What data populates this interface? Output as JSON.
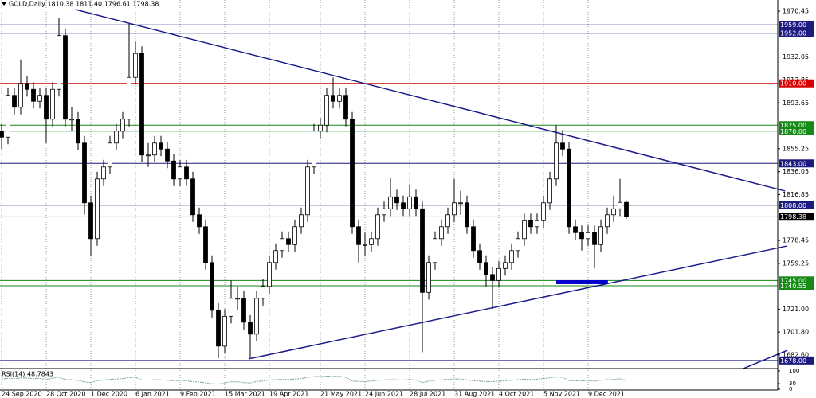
{
  "chart_data": {
    "type": "candlestick",
    "title": "GOLD,Daily  1810.38 1811.40 1796.61 1798.38",
    "categories": [
      null,
      null,
      "24 Sep 2020",
      null,
      null,
      null,
      null,
      null,
      null,
      "28 Oct 2020",
      null,
      null,
      null,
      null,
      null,
      null,
      "1 Dec 2020",
      null,
      null,
      null,
      null,
      null,
      null,
      "6 Jan 2021",
      null,
      null,
      null,
      null,
      null,
      null,
      "9 Feb 2021",
      null,
      null,
      null,
      null,
      null,
      null,
      "15 Mar 2021",
      null,
      null,
      null,
      null,
      null,
      null,
      "19 Apr 2021",
      null,
      null,
      null,
      null,
      null,
      null,
      null,
      "21 May 2021",
      null,
      null,
      null,
      null,
      null,
      null,
      "24 Jun 2021",
      null,
      null,
      null,
      null,
      null,
      null,
      "28 Jul 2021",
      null,
      null,
      null,
      null,
      null,
      null,
      "31 Aug 2021",
      null,
      null,
      null,
      null,
      null,
      null,
      "4 Oct 2021",
      null,
      null,
      null,
      null,
      null,
      null,
      "5 Nov 2021",
      null,
      null,
      null,
      null,
      null,
      null,
      "9 Dec 2021",
      null,
      null,
      null,
      null
    ],
    "open": [
      1870,
      1865,
      1900,
      1890,
      1910,
      1905,
      1895,
      1900,
      1880,
      1905,
      1950,
      1880,
      1880,
      1860,
      1810,
      1780,
      1830,
      1840,
      1860,
      1870,
      1880,
      1915,
      1935,
      1850,
      1850,
      1860,
      1855,
      1845,
      1830,
      1840,
      1830,
      1800,
      1790,
      1760,
      1720,
      1690,
      1715,
      1730,
      1730,
      1710,
      1700,
      1730,
      1740,
      1760,
      1770,
      1780,
      1775,
      1790,
      1800,
      1840,
      1870,
      1875,
      1900,
      1895,
      1900,
      1880,
      1790,
      1775,
      1775,
      1780,
      1800,
      1805,
      1815,
      1810,
      1805,
      1815,
      1805,
      1735,
      1760,
      1780,
      1790,
      1800,
      1810,
      1810,
      1790,
      1770,
      1760,
      1750,
      1745,
      1755,
      1760,
      1770,
      1780,
      1795,
      1790,
      1795,
      1810,
      1830,
      1860,
      1855,
      1790,
      1785,
      1780,
      1785,
      1775,
      1790,
      1800,
      1805,
      1810.38
    ],
    "high": [
      1876,
      1906,
      1906,
      1930,
      1916,
      1911,
      1906,
      1906,
      1911,
      1965,
      1956,
      1890,
      1886,
      1866,
      1816,
      1836,
      1846,
      1866,
      1876,
      1886,
      1960,
      1945,
      1941,
      1860,
      1866,
      1866,
      1861,
      1851,
      1846,
      1846,
      1836,
      1806,
      1796,
      1766,
      1726,
      1721,
      1745,
      1740,
      1736,
      1716,
      1736,
      1746,
      1766,
      1776,
      1786,
      1786,
      1796,
      1806,
      1846,
      1876,
      1881,
      1906,
      1915,
      1906,
      1906,
      1886,
      1796,
      1785,
      1786,
      1806,
      1811,
      1831,
      1821,
      1816,
      1825,
      1821,
      1811,
      1766,
      1786,
      1796,
      1806,
      1830,
      1820,
      1816,
      1796,
      1776,
      1766,
      1756,
      1761,
      1766,
      1776,
      1786,
      1801,
      1801,
      1801,
      1816,
      1836,
      1875,
      1871,
      1861,
      1796,
      1791,
      1791,
      1791,
      1796,
      1806,
      1816,
      1830,
      1811.4
    ],
    "low": [
      1855,
      1859,
      1884,
      1884,
      1899,
      1889,
      1889,
      1860,
      1874,
      1899,
      1874,
      1870,
      1854,
      1800,
      1765,
      1774,
      1824,
      1834,
      1854,
      1864,
      1874,
      1909,
      1844,
      1840,
      1844,
      1849,
      1839,
      1824,
      1824,
      1824,
      1794,
      1784,
      1754,
      1714,
      1680,
      1684,
      1709,
      1720,
      1704,
      1680,
      1694,
      1724,
      1734,
      1754,
      1764,
      1769,
      1769,
      1784,
      1794,
      1834,
      1864,
      1869,
      1889,
      1889,
      1874,
      1784,
      1760,
      1765,
      1769,
      1774,
      1794,
      1799,
      1804,
      1799,
      1799,
      1799,
      1685,
      1729,
      1754,
      1774,
      1784,
      1794,
      1800,
      1784,
      1764,
      1754,
      1740,
      1721,
      1739,
      1749,
      1754,
      1764,
      1774,
      1784,
      1784,
      1789,
      1804,
      1824,
      1849,
      1784,
      1779,
      1770,
      1774,
      1755,
      1769,
      1784,
      1794,
      1799,
      1796.61
    ],
    "close": [
      1865,
      1900,
      1890,
      1910,
      1905,
      1895,
      1900,
      1880,
      1905,
      1950,
      1880,
      1880,
      1860,
      1810,
      1780,
      1830,
      1840,
      1860,
      1870,
      1880,
      1915,
      1935,
      1850,
      1850,
      1860,
      1855,
      1845,
      1830,
      1840,
      1830,
      1800,
      1790,
      1760,
      1720,
      1690,
      1715,
      1730,
      1730,
      1710,
      1700,
      1730,
      1740,
      1760,
      1770,
      1780,
      1775,
      1790,
      1800,
      1840,
      1870,
      1875,
      1900,
      1895,
      1900,
      1880,
      1790,
      1775,
      1775,
      1780,
      1800,
      1805,
      1815,
      1810,
      1805,
      1815,
      1805,
      1735,
      1760,
      1780,
      1790,
      1800,
      1810,
      1810,
      1790,
      1770,
      1760,
      1750,
      1745,
      1755,
      1760,
      1770,
      1780,
      1795,
      1790,
      1795,
      1810,
      1830,
      1860,
      1855,
      1790,
      1785,
      1780,
      1785,
      1775,
      1790,
      1800,
      1805,
      1810.38,
      1798.38
    ],
    "up_color": "#ffffff",
    "down_color": "#000000",
    "ylim": [
      1671.9,
      1979.8
    ],
    "yticks": [
      1970.45,
      1932.05,
      1912.85,
      1893.65,
      1855.25,
      1836.05,
      1816.85,
      1778.45,
      1759.25,
      {
        "value": 1721,
        "label": "1721.00"
      },
      {
        "value": 1701.8,
        "label": "1701.80"
      },
      {
        "value": 1682.6,
        "label": "1682.60"
      }
    ],
    "levels": [
      {
        "value": 1959,
        "label": "1959.00",
        "color": "#1c1c80"
      },
      {
        "value": 1952,
        "label": "1952.00",
        "color": "#1c1c80"
      },
      {
        "value": 1910,
        "label": "1910.00",
        "color": "#d40000"
      },
      {
        "value": 1875,
        "label": "1875.00",
        "color": "#168a16"
      },
      {
        "value": 1870,
        "label": "1870.00",
        "color": "#168a16"
      },
      {
        "value": 1843,
        "label": "1843.00",
        "color": "#1c1c80"
      },
      {
        "value": 1808,
        "label": "1808.00",
        "color": "#1c1c80"
      },
      {
        "value": 1798.38,
        "label": "1798.38",
        "color": "#000000"
      },
      {
        "value": 1745,
        "label": "1745.00",
        "color": "#168a16"
      },
      {
        "value": 1740.55,
        "label": "1740.55",
        "color": "#168a16"
      },
      {
        "value": 1678,
        "label": "1678.00",
        "color": "#1c1c80"
      }
    ],
    "trendlines": [
      {
        "x": [
          11.6,
          122.9
        ],
        "y": [
          1971.8,
          1819.9
        ],
        "color": "#1c1c8c"
      },
      {
        "x": [
          38.75,
          123.25
        ],
        "y": [
          1679.3,
          1773.9
        ],
        "color": "#1c1c8c"
      },
      {
        "x": [
          115.75,
          123.25
        ],
        "y": [
          1669.9,
          1686.5
        ],
        "color": "#1c1c8c"
      }
    ],
    "zones": [
      {
        "x": [
          87,
          95.1
        ],
        "y": [
          1745.2,
          1741.9
        ],
        "color": "#0000cc"
      }
    ],
    "rsi": {
      "title": "RSI(14) 48.7843",
      "values": [
        55,
        60,
        58,
        62,
        61,
        58,
        59,
        54,
        60,
        66,
        52,
        52,
        48,
        40,
        36,
        47,
        50,
        54,
        56,
        58,
        64,
        66,
        50,
        50,
        52,
        51,
        49,
        46,
        48,
        46,
        41,
        39,
        35,
        30,
        27,
        35,
        40,
        40,
        36,
        34,
        42,
        45,
        50,
        52,
        54,
        53,
        56,
        58,
        65,
        69,
        70,
        72,
        70,
        71,
        65,
        45,
        42,
        42,
        44,
        49,
        50,
        53,
        51,
        50,
        53,
        50,
        36,
        44,
        49,
        51,
        54,
        56,
        56,
        51,
        46,
        44,
        42,
        41,
        44,
        46,
        49,
        52,
        55,
        53,
        55,
        58,
        62,
        67,
        65,
        47,
        46,
        45,
        47,
        44,
        49,
        52,
        53,
        57,
        48.7843
      ],
      "ylim": [
        0,
        100
      ],
      "yticks": [
        100,
        30,
        0
      ],
      "color": "#7aa0a0"
    }
  }
}
